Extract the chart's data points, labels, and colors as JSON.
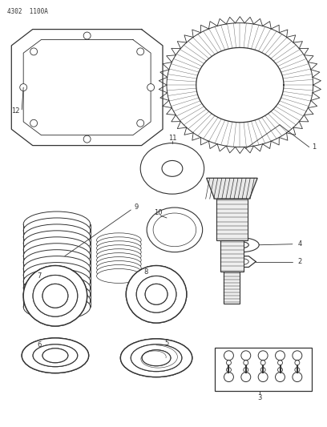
{
  "title_code": "4302  1100A",
  "bg_color": "#ffffff",
  "line_color": "#333333",
  "fig_width": 4.08,
  "fig_height": 5.33,
  "dpi": 100
}
